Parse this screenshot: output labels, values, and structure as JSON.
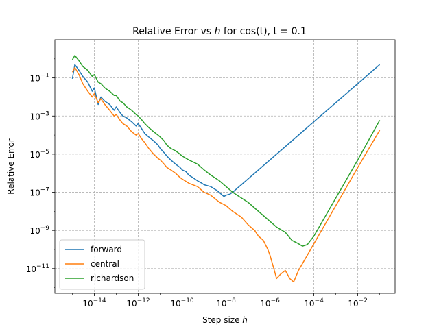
{
  "chart_data": {
    "type": "line",
    "title_parts": {
      "before": "Relative Error vs ",
      "italic": "h",
      "after": " for cos(t), t = 0.1"
    },
    "xlabel_parts": {
      "before": "Step size ",
      "italic": "h"
    },
    "ylabel": "Relative Error",
    "x_scale": "log",
    "y_scale": "log",
    "xlim": [
      1.6e-16,
      0.5
    ],
    "ylim": [
      5e-13,
      10
    ],
    "x_ticks": [
      {
        "base": "10",
        "exp": "−14",
        "value": 1e-14
      },
      {
        "base": "10",
        "exp": "−12",
        "value": 1e-12
      },
      {
        "base": "10",
        "exp": "−10",
        "value": 1e-10
      },
      {
        "base": "10",
        "exp": "−8",
        "value": 1e-08
      },
      {
        "base": "10",
        "exp": "−6",
        "value": 1e-06
      },
      {
        "base": "10",
        "exp": "−4",
        "value": 0.0001
      },
      {
        "base": "10",
        "exp": "−2",
        "value": 0.01
      }
    ],
    "y_ticks": [
      {
        "base": "10",
        "exp": "−11",
        "value": 1e-11
      },
      {
        "base": "10",
        "exp": "−9",
        "value": 1e-09
      },
      {
        "base": "10",
        "exp": "−7",
        "value": 1e-07
      },
      {
        "base": "10",
        "exp": "−5",
        "value": 1e-05
      },
      {
        "base": "10",
        "exp": "−3",
        "value": 0.001
      },
      {
        "base": "10",
        "exp": "−1",
        "value": 0.1
      }
    ],
    "grid": true,
    "grid_style": "dashed",
    "legend_position": "lower-left",
    "series": [
      {
        "name": "forward",
        "color": "#1f77b4",
        "points": [
          [
            1e-15,
            0.09
          ],
          [
            1.3e-15,
            0.5
          ],
          [
            2e-15,
            0.25
          ],
          [
            3e-15,
            0.12
          ],
          [
            5e-15,
            0.06
          ],
          [
            8e-15,
            0.02
          ],
          [
            1e-14,
            0.03
          ],
          [
            1.5e-14,
            0.004
          ],
          [
            2e-14,
            0.01
          ],
          [
            3e-14,
            0.006
          ],
          [
            5e-14,
            0.004
          ],
          [
            8e-14,
            0.002
          ],
          [
            1e-13,
            0.003
          ],
          [
            1.5e-13,
            0.0015
          ],
          [
            2e-13,
            0.001
          ],
          [
            3e-13,
            0.0008
          ],
          [
            5e-13,
            0.0005
          ],
          [
            8e-13,
            0.0003
          ],
          [
            1e-12,
            0.0004
          ],
          [
            1.5e-12,
            0.0002
          ],
          [
            2e-12,
            0.00012
          ],
          [
            3e-12,
            8e-05
          ],
          [
            5e-12,
            5e-05
          ],
          [
            8e-12,
            3e-05
          ],
          [
            1e-11,
            2e-05
          ],
          [
            1.5e-11,
            1.2e-05
          ],
          [
            2e-11,
            8e-06
          ],
          [
            3e-11,
            5e-06
          ],
          [
            5e-11,
            3e-06
          ],
          [
            8e-11,
            2e-06
          ],
          [
            1e-10,
            1.5e-06
          ],
          [
            1.5e-10,
            1.2e-06
          ],
          [
            2e-10,
            8e-07
          ],
          [
            3e-10,
            6e-07
          ],
          [
            5e-10,
            4e-07
          ],
          [
            8e-10,
            3e-07
          ],
          [
            1e-09,
            2.5e-07
          ],
          [
            2e-09,
            2e-07
          ],
          [
            4e-09,
            1.2e-07
          ],
          [
            6e-09,
            8e-08
          ],
          [
            8e-09,
            6e-08
          ],
          [
            1e-08,
            7e-08
          ],
          [
            1.5e-08,
            8e-08
          ],
          [
            2e-08,
            1e-07
          ],
          [
            3e-08,
            1.5e-07
          ],
          [
            5e-08,
            2.5e-07
          ],
          [
            1e-07,
            5e-07
          ],
          [
            1e-06,
            5e-06
          ],
          [
            1e-05,
            5e-05
          ],
          [
            0.0001,
            0.0005
          ],
          [
            0.001,
            0.005
          ],
          [
            0.01,
            0.05
          ],
          [
            0.1,
            0.5
          ]
        ]
      },
      {
        "name": "central",
        "color": "#ff7f0e",
        "points": [
          [
            1e-15,
            0.2
          ],
          [
            1.3e-15,
            0.35
          ],
          [
            2e-15,
            0.15
          ],
          [
            3e-15,
            0.05
          ],
          [
            5e-15,
            0.02
          ],
          [
            8e-15,
            0.01
          ],
          [
            1e-14,
            0.015
          ],
          [
            1.5e-14,
            0.005
          ],
          [
            2e-14,
            0.008
          ],
          [
            3e-14,
            0.004
          ],
          [
            5e-14,
            0.002
          ],
          [
            8e-14,
            0.001
          ],
          [
            1e-13,
            0.0012
          ],
          [
            1.5e-13,
            0.0006
          ],
          [
            2e-13,
            0.0004
          ],
          [
            3e-13,
            0.0003
          ],
          [
            5e-13,
            0.00015
          ],
          [
            8e-13,
            0.0001
          ],
          [
            1e-12,
            0.00012
          ],
          [
            1.5e-12,
            6e-05
          ],
          [
            2e-12,
            4e-05
          ],
          [
            3e-12,
            2e-05
          ],
          [
            5e-12,
            1e-05
          ],
          [
            8e-12,
            6e-06
          ],
          [
            1e-11,
            5e-06
          ],
          [
            1.5e-11,
            3e-06
          ],
          [
            2e-11,
            2e-06
          ],
          [
            3e-11,
            1.5e-06
          ],
          [
            5e-11,
            1e-06
          ],
          [
            8e-11,
            6e-07
          ],
          [
            1e-10,
            5e-07
          ],
          [
            2e-10,
            3e-07
          ],
          [
            5e-10,
            2e-07
          ],
          [
            1e-09,
            1e-07
          ],
          [
            2e-09,
            7e-08
          ],
          [
            5e-09,
            3e-08
          ],
          [
            1e-08,
            2e-08
          ],
          [
            2e-08,
            1e-08
          ],
          [
            5e-08,
            5e-09
          ],
          [
            1e-07,
            2e-09
          ],
          [
            2e-07,
            1e-09
          ],
          [
            3e-07,
            5e-10
          ],
          [
            5e-07,
            3e-10
          ],
          [
            8e-07,
            1e-10
          ],
          [
            1e-06,
            5e-11
          ],
          [
            1.5e-06,
            1e-11
          ],
          [
            2e-06,
            3e-12
          ],
          [
            3e-06,
            5e-12
          ],
          [
            5e-06,
            8e-12
          ],
          [
            8e-06,
            3e-12
          ],
          [
            1.2e-05,
            2e-12
          ],
          [
            2e-05,
            8e-12
          ],
          [
            5e-05,
            5e-11
          ],
          [
            0.0001,
            2e-10
          ],
          [
            0.001,
            2e-08
          ],
          [
            0.01,
            2e-06
          ],
          [
            0.1,
            0.00018
          ]
        ]
      },
      {
        "name": "richardson",
        "color": "#2ca02c",
        "points": [
          [
            1e-15,
            0.9
          ],
          [
            1.3e-15,
            1.5
          ],
          [
            2e-15,
            0.8
          ],
          [
            3e-15,
            0.4
          ],
          [
            5e-15,
            0.25
          ],
          [
            8e-15,
            0.12
          ],
          [
            1e-14,
            0.15
          ],
          [
            1.5e-14,
            0.06
          ],
          [
            2e-14,
            0.05
          ],
          [
            3e-14,
            0.03
          ],
          [
            5e-14,
            0.02
          ],
          [
            8e-14,
            0.012
          ],
          [
            1e-13,
            0.012
          ],
          [
            1.5e-13,
            0.006
          ],
          [
            2e-13,
            0.005
          ],
          [
            3e-13,
            0.003
          ],
          [
            5e-13,
            0.002
          ],
          [
            8e-13,
            0.0012
          ],
          [
            1e-12,
            0.001
          ],
          [
            1.5e-12,
            0.0006
          ],
          [
            2e-12,
            0.0004
          ],
          [
            3e-12,
            0.00025
          ],
          [
            5e-12,
            0.00015
          ],
          [
            8e-12,
            0.0001
          ],
          [
            1e-11,
            8e-05
          ],
          [
            1.5e-11,
            5e-05
          ],
          [
            2e-11,
            3e-05
          ],
          [
            3e-11,
            2e-05
          ],
          [
            5e-11,
            1.5e-05
          ],
          [
            8e-11,
            1e-05
          ],
          [
            1e-10,
            8e-06
          ],
          [
            2e-10,
            5e-06
          ],
          [
            5e-10,
            3e-06
          ],
          [
            1e-09,
            1.5e-06
          ],
          [
            2e-09,
            8e-07
          ],
          [
            5e-09,
            4e-07
          ],
          [
            1e-08,
            2e-07
          ],
          [
            2e-08,
            1e-07
          ],
          [
            5e-08,
            5e-08
          ],
          [
            1e-07,
            3e-08
          ],
          [
            2e-07,
            1.5e-08
          ],
          [
            5e-07,
            6e-09
          ],
          [
            1e-06,
            3e-09
          ],
          [
            2e-06,
            1.5e-09
          ],
          [
            5e-06,
            8e-10
          ],
          [
            1e-05,
            3e-10
          ],
          [
            2e-05,
            2e-10
          ],
          [
            3e-05,
            1.5e-10
          ],
          [
            5e-05,
            1.8e-10
          ],
          [
            0.0001,
            5e-10
          ],
          [
            0.001,
            5e-08
          ],
          [
            0.01,
            5e-06
          ],
          [
            0.1,
            0.0006
          ]
        ]
      }
    ]
  }
}
